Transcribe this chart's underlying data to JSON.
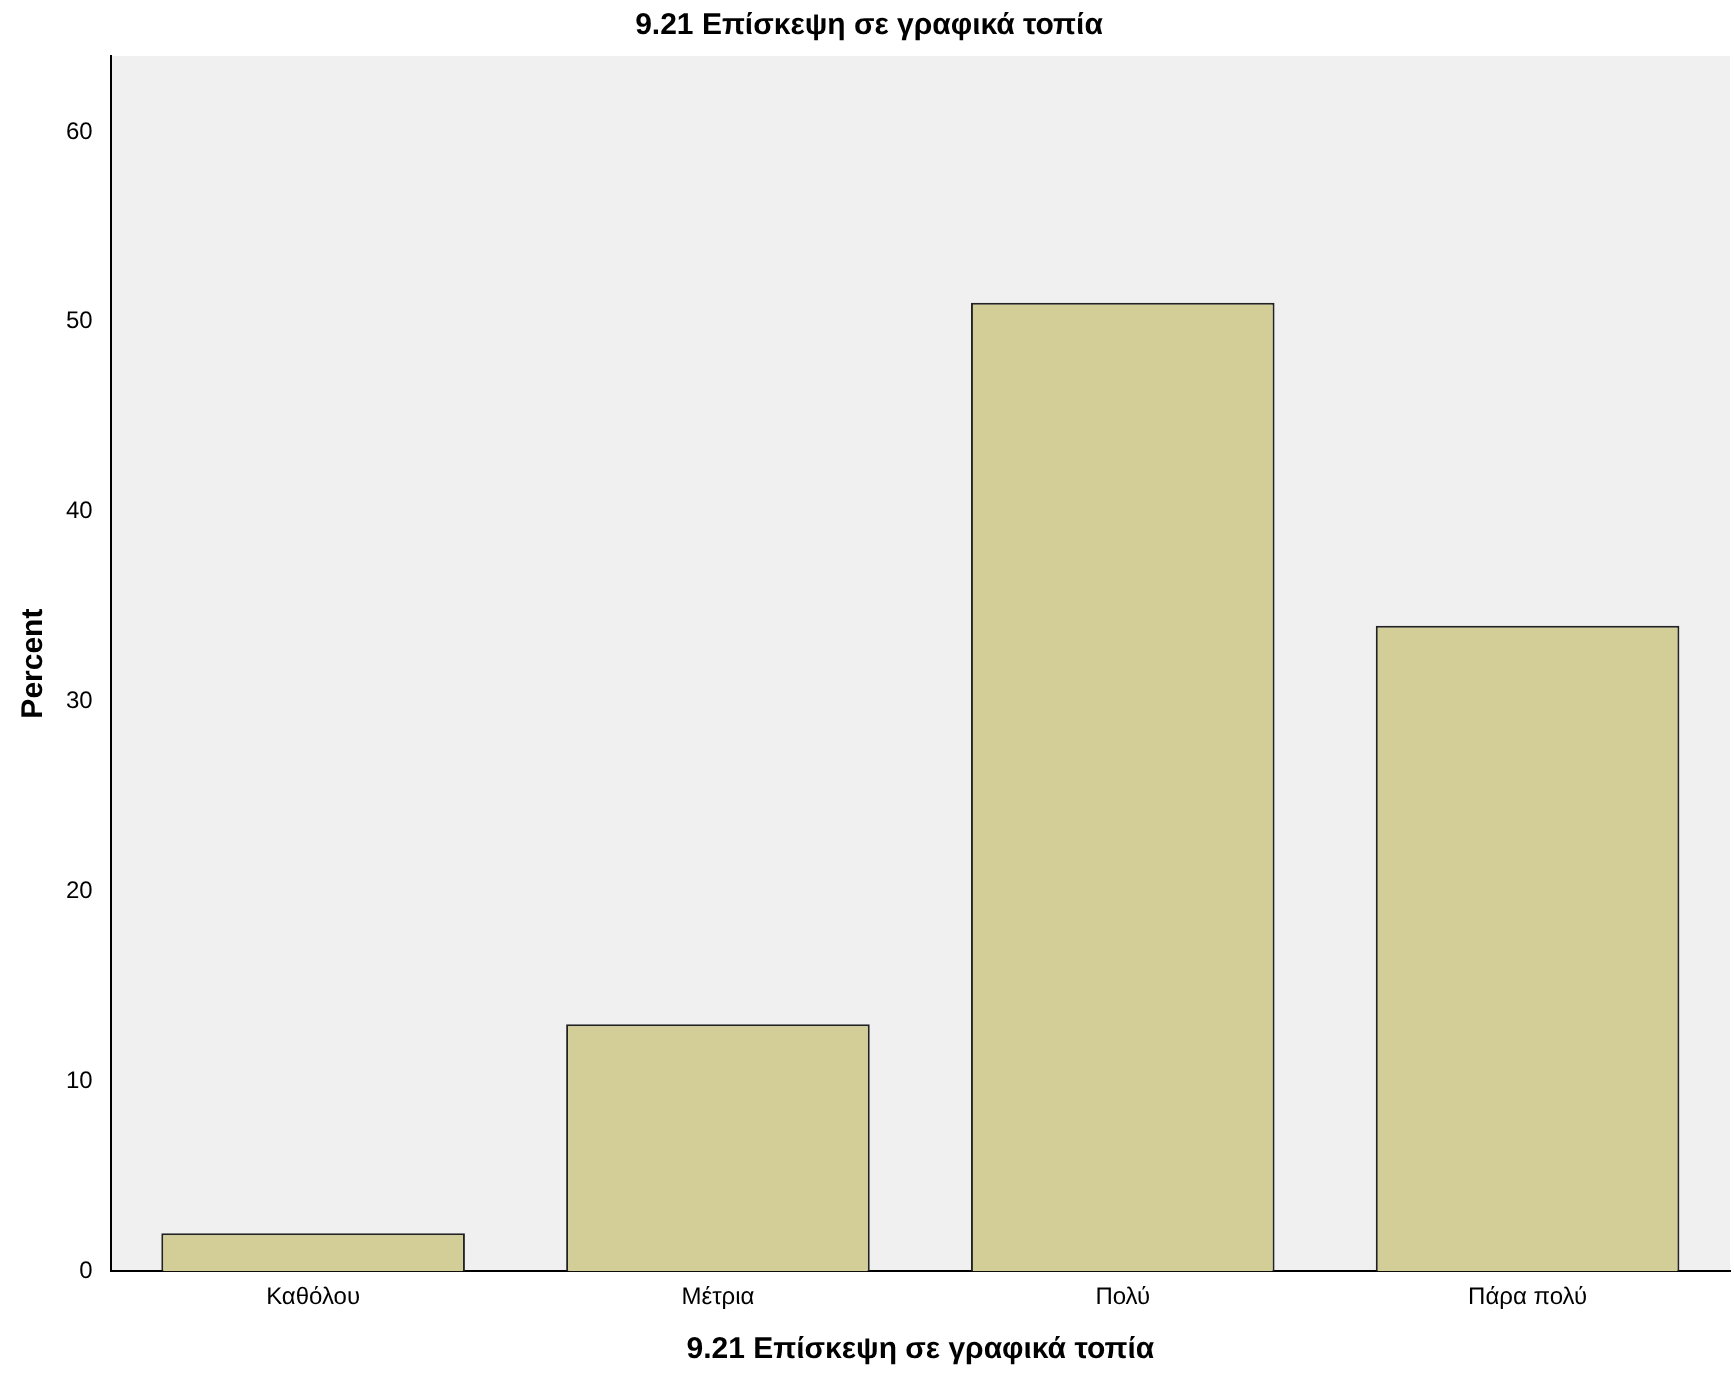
{
  "chart_data": {
    "type": "bar",
    "title": "9.21 Επίσκεψη σε γραφικά τοπία",
    "xlabel": "9.21 Επίσκεψη σε γραφικά τοπία",
    "ylabel": "Percent",
    "categories": [
      "Καθόλου",
      "Μέτρια",
      "Πολύ",
      "Πάρα πολύ"
    ],
    "values": [
      2,
      13,
      51,
      34
    ],
    "color": "#d3ce97",
    "ylim": [
      0,
      64
    ],
    "yticks": [
      0,
      10,
      20,
      30,
      40,
      50,
      60
    ],
    "grid": false,
    "legend": false
  }
}
